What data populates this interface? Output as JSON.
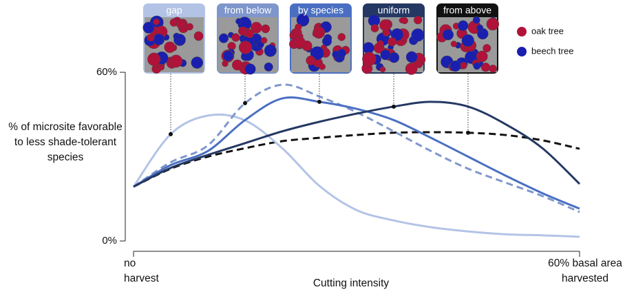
{
  "chart_data": {
    "type": "line",
    "y_label": "% of microsite favorable to less shade-tolerant species",
    "x_label": "Cutting intensity",
    "x": [
      0,
      5,
      10,
      15,
      20,
      25,
      30,
      35,
      40,
      45,
      50,
      55,
      60
    ],
    "xlim": [
      0,
      60
    ],
    "xticks": [
      {
        "value": 0,
        "label": "no harvest"
      },
      {
        "value": 60,
        "label": "60% basal area harvested"
      }
    ],
    "ylim": [
      0,
      60
    ],
    "yticks": [
      {
        "value": 0,
        "label": "0%"
      },
      {
        "value": 60,
        "label": "60%"
      }
    ],
    "series": [
      {
        "name": "gap",
        "color": "#b3c3e6",
        "dashed": false,
        "values": [
          19.3,
          38,
          44.6,
          42.9,
          33,
          19.6,
          11,
          7.3,
          4.9,
          3.4,
          2.4,
          2,
          1.5
        ]
      },
      {
        "name": "from below",
        "color": "#7f96cc",
        "dashed": true,
        "values": [
          19.3,
          28,
          34,
          49,
          55.6,
          51.4,
          45.8,
          39,
          32,
          25.7,
          20.8,
          16,
          10.3
        ]
      },
      {
        "name": "by species",
        "color": "#4a6fc2",
        "dashed": false,
        "values": [
          19.3,
          27,
          32,
          43,
          50.7,
          49.5,
          47,
          43,
          36.7,
          30,
          23.3,
          17,
          11.5
        ]
      },
      {
        "name": "uniform",
        "color": "#243863",
        "dashed": false,
        "values": [
          19.3,
          26,
          30.6,
          34.8,
          39,
          42.4,
          45.3,
          47.8,
          49.5,
          47.8,
          41.6,
          33,
          20.3
        ]
      },
      {
        "name": "from above",
        "color": "#111111",
        "dashed": true,
        "values": [
          19.3,
          25.7,
          30,
          33,
          35.5,
          36.7,
          37.7,
          38.5,
          38.7,
          38.5,
          37.7,
          35.8,
          32.8
        ]
      }
    ],
    "legend": [
      {
        "name": "oak tree",
        "color": "#b0123a"
      },
      {
        "name": "beech tree",
        "color": "#1a1fb0"
      }
    ]
  }
}
